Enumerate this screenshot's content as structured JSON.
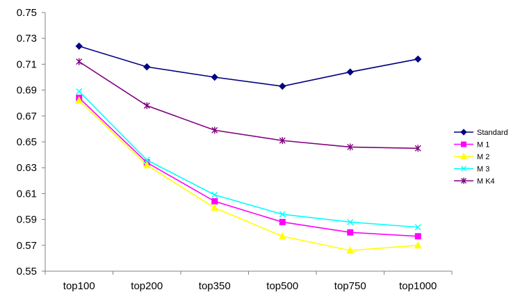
{
  "chart_data": {
    "type": "line",
    "title": "",
    "xlabel": "",
    "ylabel": "",
    "categories": [
      "top100",
      "top200",
      "top350",
      "top500",
      "top750",
      "top1000"
    ],
    "ylim": [
      0.55,
      0.75
    ],
    "yticks": [
      "0.55",
      "0.57",
      "0.59",
      "0.61",
      "0.63",
      "0.65",
      "0.67",
      "0.69",
      "0.71",
      "0.73",
      "0.75"
    ],
    "grid": false,
    "legend_position": "right",
    "series": [
      {
        "name": "Standard",
        "color": "#000080",
        "marker": "diamond",
        "values": [
          0.724,
          0.708,
          0.7,
          0.693,
          0.704,
          0.714
        ]
      },
      {
        "name": "M 1",
        "color": "#ff00ff",
        "marker": "square",
        "values": [
          0.684,
          0.634,
          0.604,
          0.588,
          0.58,
          0.577
        ]
      },
      {
        "name": "M 2",
        "color": "#ffff00",
        "marker": "triangle",
        "values": [
          0.682,
          0.632,
          0.599,
          0.577,
          0.566,
          0.57
        ]
      },
      {
        "name": "M 3",
        "color": "#00ffff",
        "marker": "x",
        "values": [
          0.689,
          0.636,
          0.609,
          0.594,
          0.588,
          0.584
        ]
      },
      {
        "name": "M K4",
        "color": "#800080",
        "marker": "star",
        "values": [
          0.712,
          0.678,
          0.659,
          0.651,
          0.646,
          0.645
        ]
      }
    ]
  }
}
